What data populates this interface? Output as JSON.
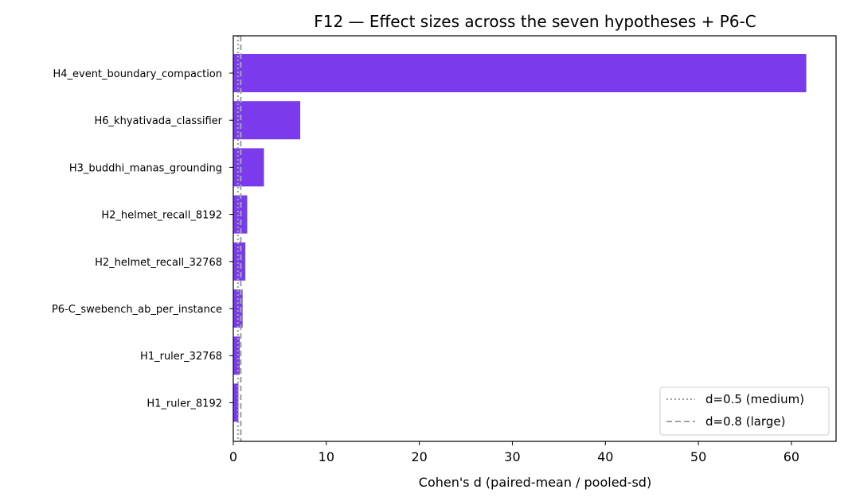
{
  "chart_data": {
    "type": "bar",
    "orientation": "horizontal",
    "title": "F12 — Effect sizes across the seven hypotheses + P6-C",
    "xlabel": "Cohen's d (paired-mean / pooled-sd)",
    "ylabel": "",
    "categories": [
      "H4_event_boundary_compaction",
      "H6_khyativada_classifier",
      "H3_buddhi_manas_grounding",
      "H2_helmet_recall_8192",
      "H2_helmet_recall_32768",
      "P6-C_swebench_ab_per_instance",
      "H1_ruler_32768",
      "H1_ruler_8192"
    ],
    "values": [
      61.6,
      7.2,
      3.3,
      1.5,
      1.3,
      1.0,
      0.7,
      0.55
    ],
    "bar_color": "#7c3aed",
    "xlim": [
      0,
      64.8
    ],
    "xticks": [
      "0",
      "10",
      "20",
      "30",
      "40",
      "50",
      "60"
    ],
    "xtick_values": [
      0,
      10,
      20,
      30,
      40,
      50,
      60
    ],
    "grid": false,
    "reference_lines": [
      {
        "value": 0.5,
        "label": "d=0.5 (medium)",
        "style": "dotted",
        "color": "#9e9e9e"
      },
      {
        "value": 0.8,
        "label": "d=0.8 (large)",
        "style": "dashed",
        "color": "#9ca3af"
      }
    ],
    "legend_position": "bottom-right"
  }
}
